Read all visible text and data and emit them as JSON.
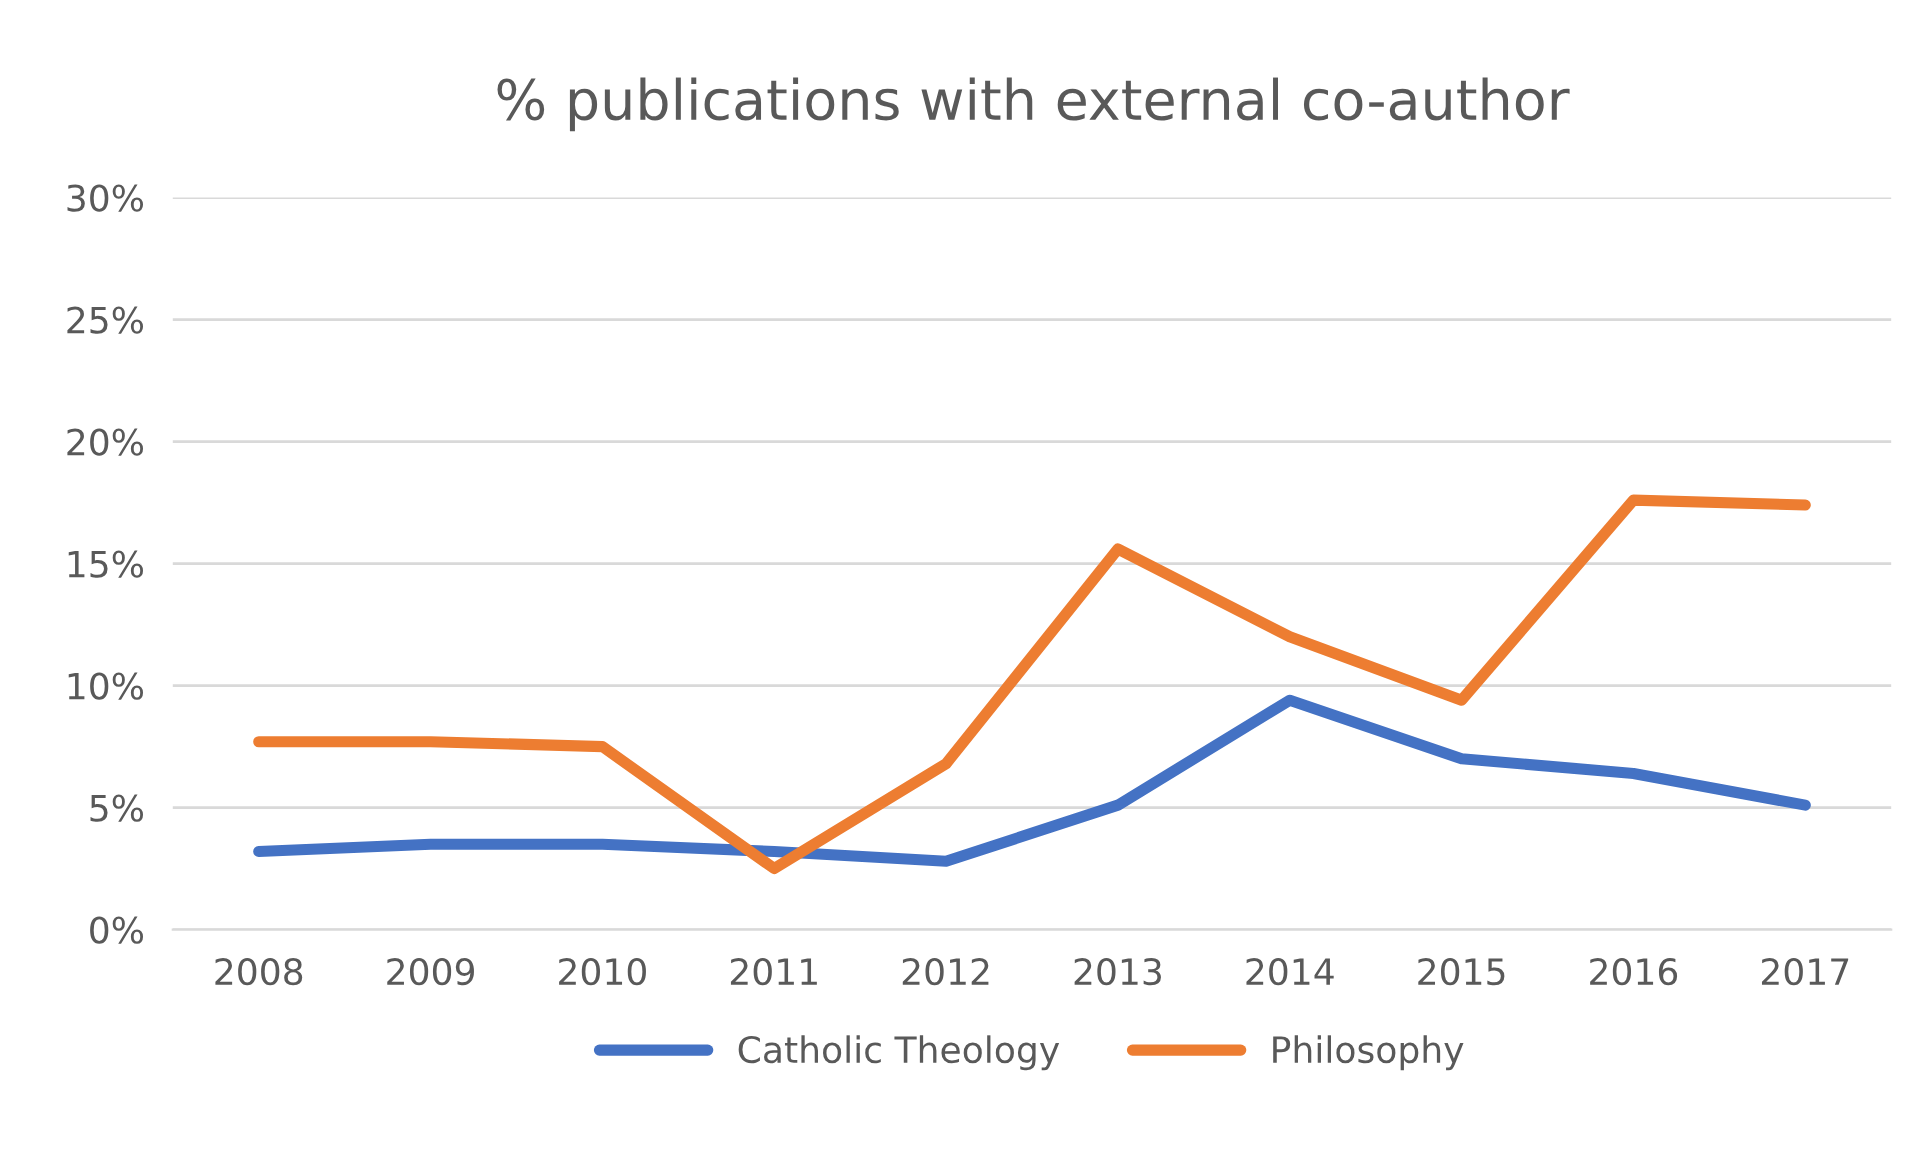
{
  "chart_data": {
    "type": "line",
    "title": "% publications with external co-author",
    "categories": [
      "2008",
      "2009",
      "2010",
      "2011",
      "2012",
      "2013",
      "2014",
      "2015",
      "2016",
      "2017"
    ],
    "series": [
      {
        "name": "Catholic Theology",
        "color": "#4472c4",
        "values": [
          3.2,
          3.5,
          3.5,
          3.2,
          2.8,
          5.1,
          9.4,
          7.0,
          6.4,
          5.1
        ]
      },
      {
        "name": "Philosophy",
        "color": "#ed7d31",
        "values": [
          7.7,
          7.7,
          7.5,
          2.5,
          6.8,
          15.6,
          12.0,
          9.4,
          17.6,
          17.4
        ]
      }
    ],
    "ylim": [
      0,
      30
    ],
    "yticks": [
      {
        "value": 0,
        "label": "0%"
      },
      {
        "value": 5,
        "label": "5%"
      },
      {
        "value": 10,
        "label": "10%"
      },
      {
        "value": 15,
        "label": "15%"
      },
      {
        "value": 20,
        "label": "20%"
      },
      {
        "value": 25,
        "label": "25%"
      },
      {
        "value": 30,
        "label": "30%"
      }
    ],
    "grid": "y",
    "legend": "bottom",
    "marker": "none",
    "line_style": "solid"
  }
}
